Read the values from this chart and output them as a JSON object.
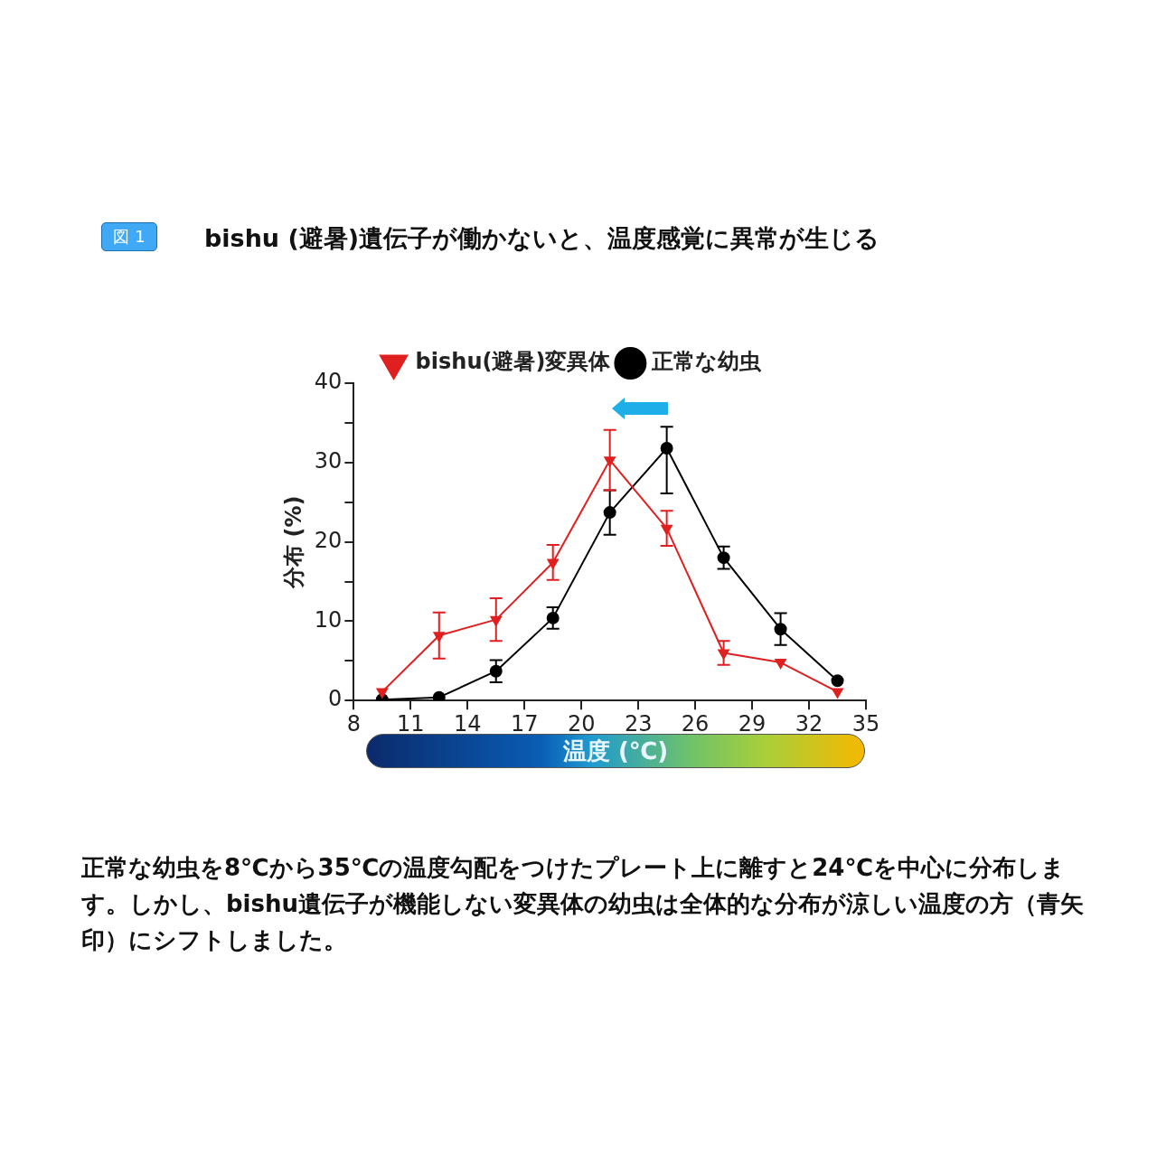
{
  "chart_data": {
    "type": "line",
    "title": "bishu (避暑)遺伝子が働かないと、温度感覚に異常が生じる",
    "xlabel": "温度 (℃)",
    "ylabel": "分布 (%)",
    "annotations": [
      "図 1",
      "正常な幼虫を8℃から35℃の温度勾配をつけたプレート上に離すと24℃を中心に分布します。しかし、bishu遺伝子が機能しない変異体の幼虫は全体的な分布が涼しい温度の方（青矢印）にシフトしました。"
    ],
    "x": [
      9.5,
      12.5,
      15.5,
      18.5,
      21.5,
      24.5,
      27.5,
      30.5,
      33.5
    ],
    "series": [
      {
        "name": "正常な幼虫",
        "color": "#000000",
        "marker": "circle",
        "values": [
          0.1,
          0.4,
          3.7,
          10.4,
          23.7,
          31.8,
          18,
          9,
          2.5
        ],
        "errors": [
          null,
          null,
          1.4,
          1.35,
          2.8,
          [
            26.1,
            34.5
          ],
          1.4,
          2,
          null
        ]
      },
      {
        "name": "bishu(避暑)変異体",
        "color": "#e02020",
        "marker": "triangle",
        "values": [
          1.1,
          8.2,
          10.2,
          17.4,
          30.3,
          21.7,
          6,
          4.8,
          1.1
        ],
        "errors": [
          null,
          2.9,
          2.7,
          2.2,
          3.8,
          2.2,
          1.5,
          null,
          null
        ]
      }
    ],
    "xlim": [
      8,
      35
    ],
    "xticks": [
      8,
      11,
      14,
      17,
      20,
      23,
      26,
      29,
      32,
      35
    ],
    "ylim": [
      0,
      40
    ],
    "yticks": [
      0,
      {
        "value": 5,
        "label": null
      },
      10,
      {
        "value": 15,
        "label": null
      },
      20,
      {
        "value": 25,
        "label": null
      },
      30,
      {
        "value": 35,
        "label": null
      },
      40
    ],
    "grid": false,
    "legend": "top",
    "line_style": "solid"
  }
}
